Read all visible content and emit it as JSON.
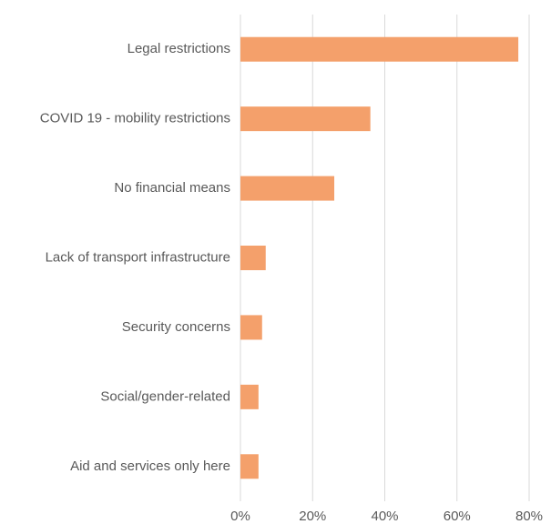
{
  "chart_data": {
    "type": "barh",
    "categories": [
      "Legal restrictions",
      "COVID 19 - mobility restrictions",
      "No financial means",
      "Lack of transport infrastructure",
      "Security concerns",
      "Social/gender-related",
      "Aid and services only here"
    ],
    "values": [
      77,
      36,
      26,
      7,
      6,
      5,
      5
    ],
    "color": "#f4a06b",
    "xlim": [
      0,
      80
    ],
    "xticks": [
      {
        "value": 0,
        "label": "0%"
      },
      {
        "value": 20,
        "label": "20%"
      },
      {
        "value": 40,
        "label": "40%"
      },
      {
        "value": 60,
        "label": "60%"
      },
      {
        "value": 80,
        "label": "80%"
      }
    ],
    "grid": true
  }
}
